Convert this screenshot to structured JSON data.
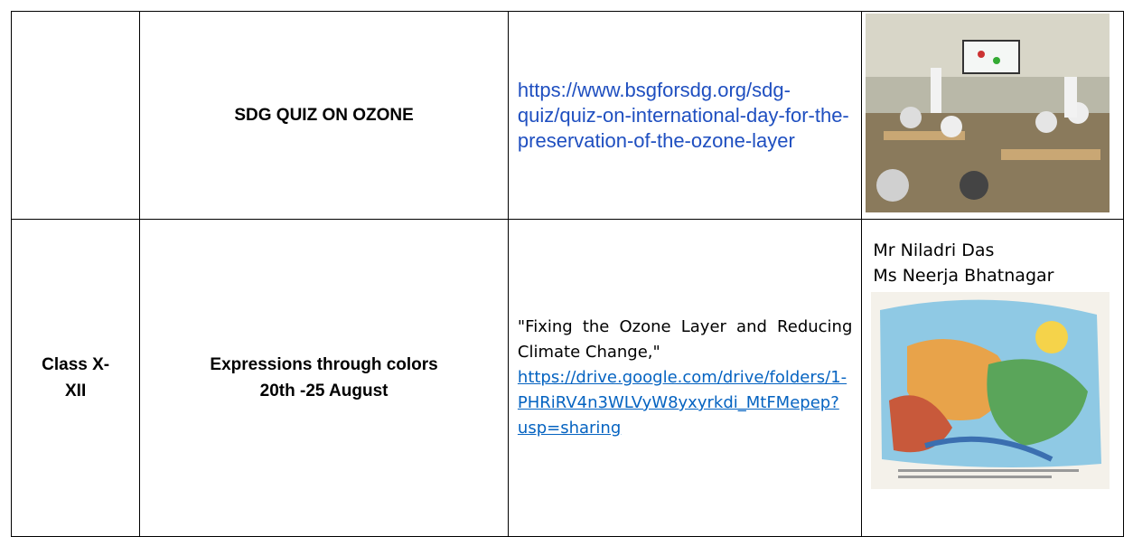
{
  "table": {
    "rows": [
      {
        "activity": "SDG QUIZ ON OZONE",
        "link": "https://www.bsgforsdg.org/sdg-quiz/quiz-on-international-day-for-the-preservation-of-the-ozone-layer"
      },
      {
        "class": "Class X-XII",
        "activity": [
          "Expressions through colors",
          "20th -25 August"
        ],
        "description": "\"Fixing the Ozone Layer and Reducing Climate Change,\"",
        "link": "https://drive.google.com/drive/folders/1-PHRiRV4n3WLVyW8yxyrkdi_MtFMepep?usp=sharing",
        "teachers": [
          "Mr Niladri Das",
          "Ms Neerja Bhatnagar"
        ]
      }
    ]
  }
}
